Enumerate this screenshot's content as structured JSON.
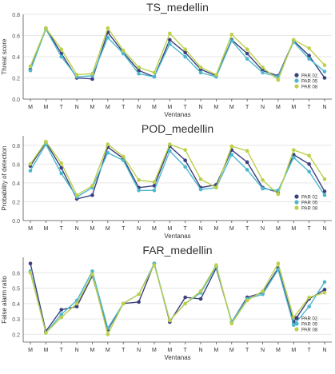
{
  "figure": {
    "colors": {
      "PAR 02": "#3b3f7f",
      "PAR 05": "#4bb8cf",
      "PAR 08": "#bcd04a",
      "axis": "#555555",
      "grid": "#e6e6e6",
      "text": "#333333"
    }
  },
  "chart_data": [
    {
      "type": "line",
      "title": "TS_medellin",
      "xlabel": "Ventanas",
      "ylabel": "Threat score",
      "categories": [
        "M",
        "M",
        "T",
        "N",
        "M",
        "M",
        "T",
        "N",
        "M",
        "M",
        "T",
        "N",
        "M",
        "M",
        "T",
        "N",
        "M",
        "M",
        "T",
        "N"
      ],
      "yticks": [
        0.0,
        0.2,
        0.4,
        0.6,
        0.8
      ],
      "ylim": [
        0.0,
        0.8
      ],
      "grid": true,
      "legend": "bottom-right",
      "series": [
        {
          "name": "PAR 02",
          "values": [
            0.28,
            0.67,
            0.43,
            0.2,
            0.19,
            0.63,
            0.44,
            0.27,
            0.21,
            0.56,
            0.44,
            0.28,
            0.22,
            0.56,
            0.43,
            0.27,
            0.22,
            0.55,
            0.41,
            0.2
          ]
        },
        {
          "name": "PAR 05",
          "values": [
            0.27,
            0.66,
            0.4,
            0.21,
            0.22,
            0.58,
            0.43,
            0.24,
            0.21,
            0.52,
            0.4,
            0.25,
            0.21,
            0.55,
            0.38,
            0.25,
            0.21,
            0.54,
            0.38,
            0.26
          ]
        },
        {
          "name": "PAR 08",
          "values": [
            0.31,
            0.67,
            0.47,
            0.23,
            0.24,
            0.67,
            0.46,
            0.3,
            0.25,
            0.62,
            0.47,
            0.3,
            0.23,
            0.61,
            0.47,
            0.3,
            0.18,
            0.56,
            0.48,
            0.32
          ]
        }
      ]
    },
    {
      "type": "line",
      "title": "POD_medellin",
      "xlabel": "Ventanas",
      "ylabel": "Probability of detection",
      "categories": [
        "M",
        "M",
        "T",
        "N",
        "M",
        "M",
        "T",
        "N",
        "M",
        "M",
        "T",
        "N",
        "M",
        "M",
        "T",
        "N",
        "M",
        "M",
        "T",
        "N"
      ],
      "yticks": [
        0.0,
        0.2,
        0.4,
        0.6,
        0.8
      ],
      "ylim": [
        0.0,
        0.9
      ],
      "grid": true,
      "legend": "bottom-right",
      "series": [
        {
          "name": "PAR 02",
          "values": [
            0.58,
            0.83,
            0.56,
            0.23,
            0.27,
            0.78,
            0.66,
            0.35,
            0.37,
            0.79,
            0.64,
            0.35,
            0.38,
            0.75,
            0.62,
            0.35,
            0.3,
            0.7,
            0.6,
            0.31
          ]
        },
        {
          "name": "PAR 05",
          "values": [
            0.53,
            0.81,
            0.5,
            0.25,
            0.35,
            0.72,
            0.64,
            0.32,
            0.32,
            0.74,
            0.57,
            0.33,
            0.35,
            0.7,
            0.54,
            0.34,
            0.32,
            0.67,
            0.52,
            0.27
          ]
        },
        {
          "name": "PAR 08",
          "values": [
            0.6,
            0.84,
            0.61,
            0.27,
            0.37,
            0.81,
            0.68,
            0.43,
            0.41,
            0.81,
            0.75,
            0.44,
            0.35,
            0.79,
            0.74,
            0.43,
            0.28,
            0.75,
            0.69,
            0.44
          ]
        }
      ]
    },
    {
      "type": "line",
      "title": "FAR_medellin",
      "xlabel": "Ventanas",
      "ylabel": "False alarm ratio",
      "categories": [
        "M",
        "M",
        "T",
        "N",
        "M",
        "M",
        "T",
        "N",
        "M",
        "M",
        "T",
        "N",
        "M",
        "M",
        "T",
        "N",
        "M",
        "M",
        "T",
        "N"
      ],
      "yticks": [
        0.2,
        0.3,
        0.4,
        0.5,
        0.6
      ],
      "ylim": [
        0.15,
        0.7
      ],
      "grid": true,
      "legend": "bottom-right",
      "series": [
        {
          "name": "PAR 02",
          "values": [
            0.66,
            0.22,
            0.36,
            0.38,
            0.58,
            0.23,
            0.4,
            0.41,
            0.66,
            0.28,
            0.44,
            0.43,
            0.63,
            0.28,
            0.44,
            0.47,
            0.63,
            0.28,
            0.43,
            0.49
          ]
        },
        {
          "name": "PAR 05",
          "values": [
            0.61,
            0.21,
            0.33,
            0.42,
            0.61,
            0.24,
            0.4,
            0.46,
            0.66,
            0.29,
            0.4,
            0.47,
            0.64,
            0.28,
            0.43,
            0.46,
            0.62,
            0.26,
            0.38,
            0.54
          ]
        },
        {
          "name": "PAR 08",
          "values": [
            0.6,
            0.21,
            0.31,
            0.4,
            0.59,
            0.2,
            0.4,
            0.46,
            0.65,
            0.29,
            0.4,
            0.48,
            0.65,
            0.27,
            0.42,
            0.48,
            0.66,
            0.31,
            0.44,
            0.47
          ]
        }
      ]
    }
  ]
}
